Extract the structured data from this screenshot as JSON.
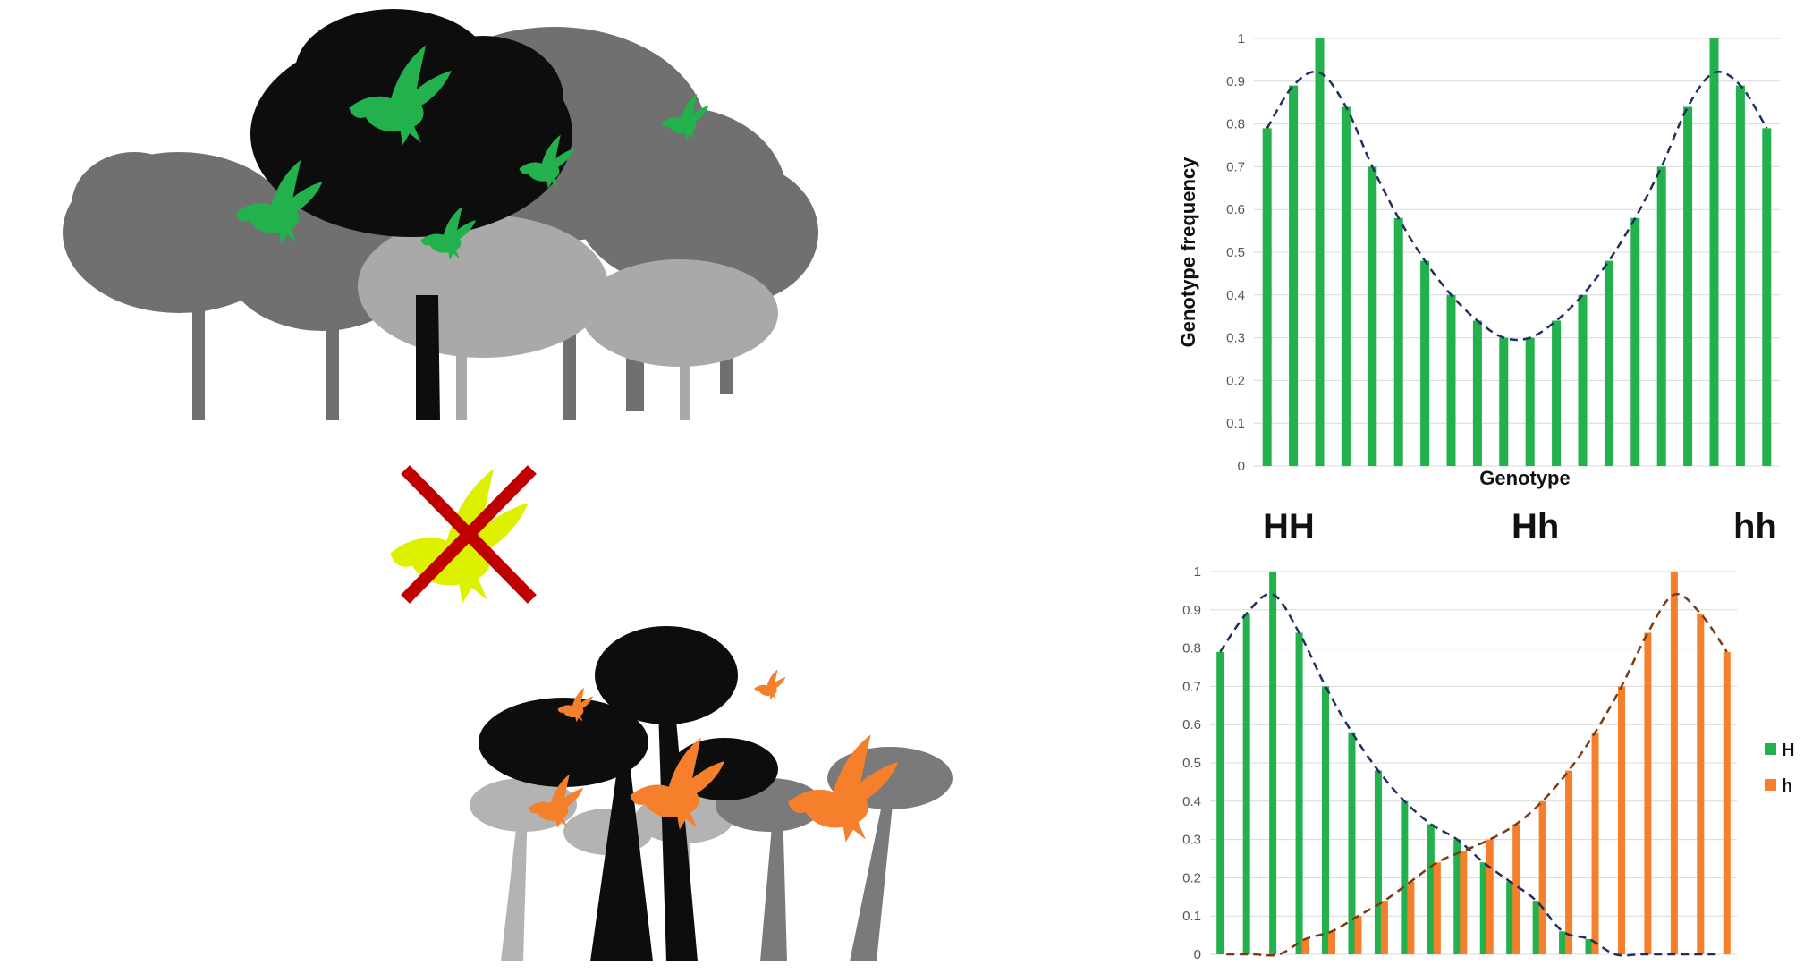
{
  "colors": {
    "green": "#22b14c",
    "orange": "#f57f2a",
    "yellow": "#dcf000",
    "cross_red": "#c00000",
    "tree_black": "#0d0d0d",
    "tree_dark_gray": "#6e6e6e",
    "tree_mid_gray": "#8a8a8a",
    "tree_light_gray": "#b3b3b3",
    "gridline": "#d9d9d9",
    "curve_navy": "#1f2f5e",
    "curve_brown": "#7a3b12"
  },
  "illustration": {
    "forest_icon": "deciduous-forest",
    "palm_icon": "palm-forest",
    "bird_icon": "flying-bird",
    "cross_icon": "red-x"
  },
  "chart_data": [
    {
      "type": "bar",
      "xlabel": "Genotype",
      "ylabel": "Genotype frequency",
      "ylim": [
        0,
        1
      ],
      "yticks": [
        "0",
        "0.1",
        "0.2",
        "0.3",
        "0.4",
        "0.5",
        "0.6",
        "0.7",
        "0.8",
        "0.9",
        "1"
      ],
      "genotype_labels": [
        "HH",
        "Hh",
        "hh"
      ],
      "grid": true,
      "series": [
        {
          "color": "#22b14c",
          "values": [
            0.79,
            0.89,
            1.0,
            0.84,
            0.7,
            0.58,
            0.48,
            0.4,
            0.34,
            0.3,
            0.3,
            0.34,
            0.4,
            0.48,
            0.58,
            0.7,
            0.84,
            1.0,
            0.89,
            0.79
          ]
        }
      ],
      "trend": {
        "style": "dashed",
        "color": "#1f2f5e",
        "shape": "bimodal"
      }
    },
    {
      "type": "bar",
      "ylim": [
        0,
        1
      ],
      "yticks": [
        "0",
        "0.1",
        "0.2",
        "0.3",
        "0.4",
        "0.5",
        "0.6",
        "0.7",
        "0.8",
        "0.9",
        "1"
      ],
      "grid": true,
      "legend_position": "right",
      "series": [
        {
          "name": "H",
          "color": "#22b14c",
          "values": [
            0.79,
            0.89,
            1.0,
            0.84,
            0.7,
            0.58,
            0.48,
            0.4,
            0.34,
            0.3,
            0.24,
            0.19,
            0.14,
            0.06,
            0.04,
            0,
            0,
            0,
            0,
            0
          ]
        },
        {
          "name": "h",
          "color": "#f57f2a",
          "values": [
            0,
            0,
            0,
            0.04,
            0.06,
            0.1,
            0.14,
            0.19,
            0.24,
            0.27,
            0.3,
            0.34,
            0.4,
            0.48,
            0.58,
            0.7,
            0.84,
            1.0,
            0.89,
            0.79
          ]
        }
      ],
      "trends": [
        {
          "series": "H",
          "style": "dashed",
          "color": "#1f2f5e"
        },
        {
          "series": "h",
          "style": "dashed",
          "color": "#7a3b12"
        }
      ]
    }
  ]
}
